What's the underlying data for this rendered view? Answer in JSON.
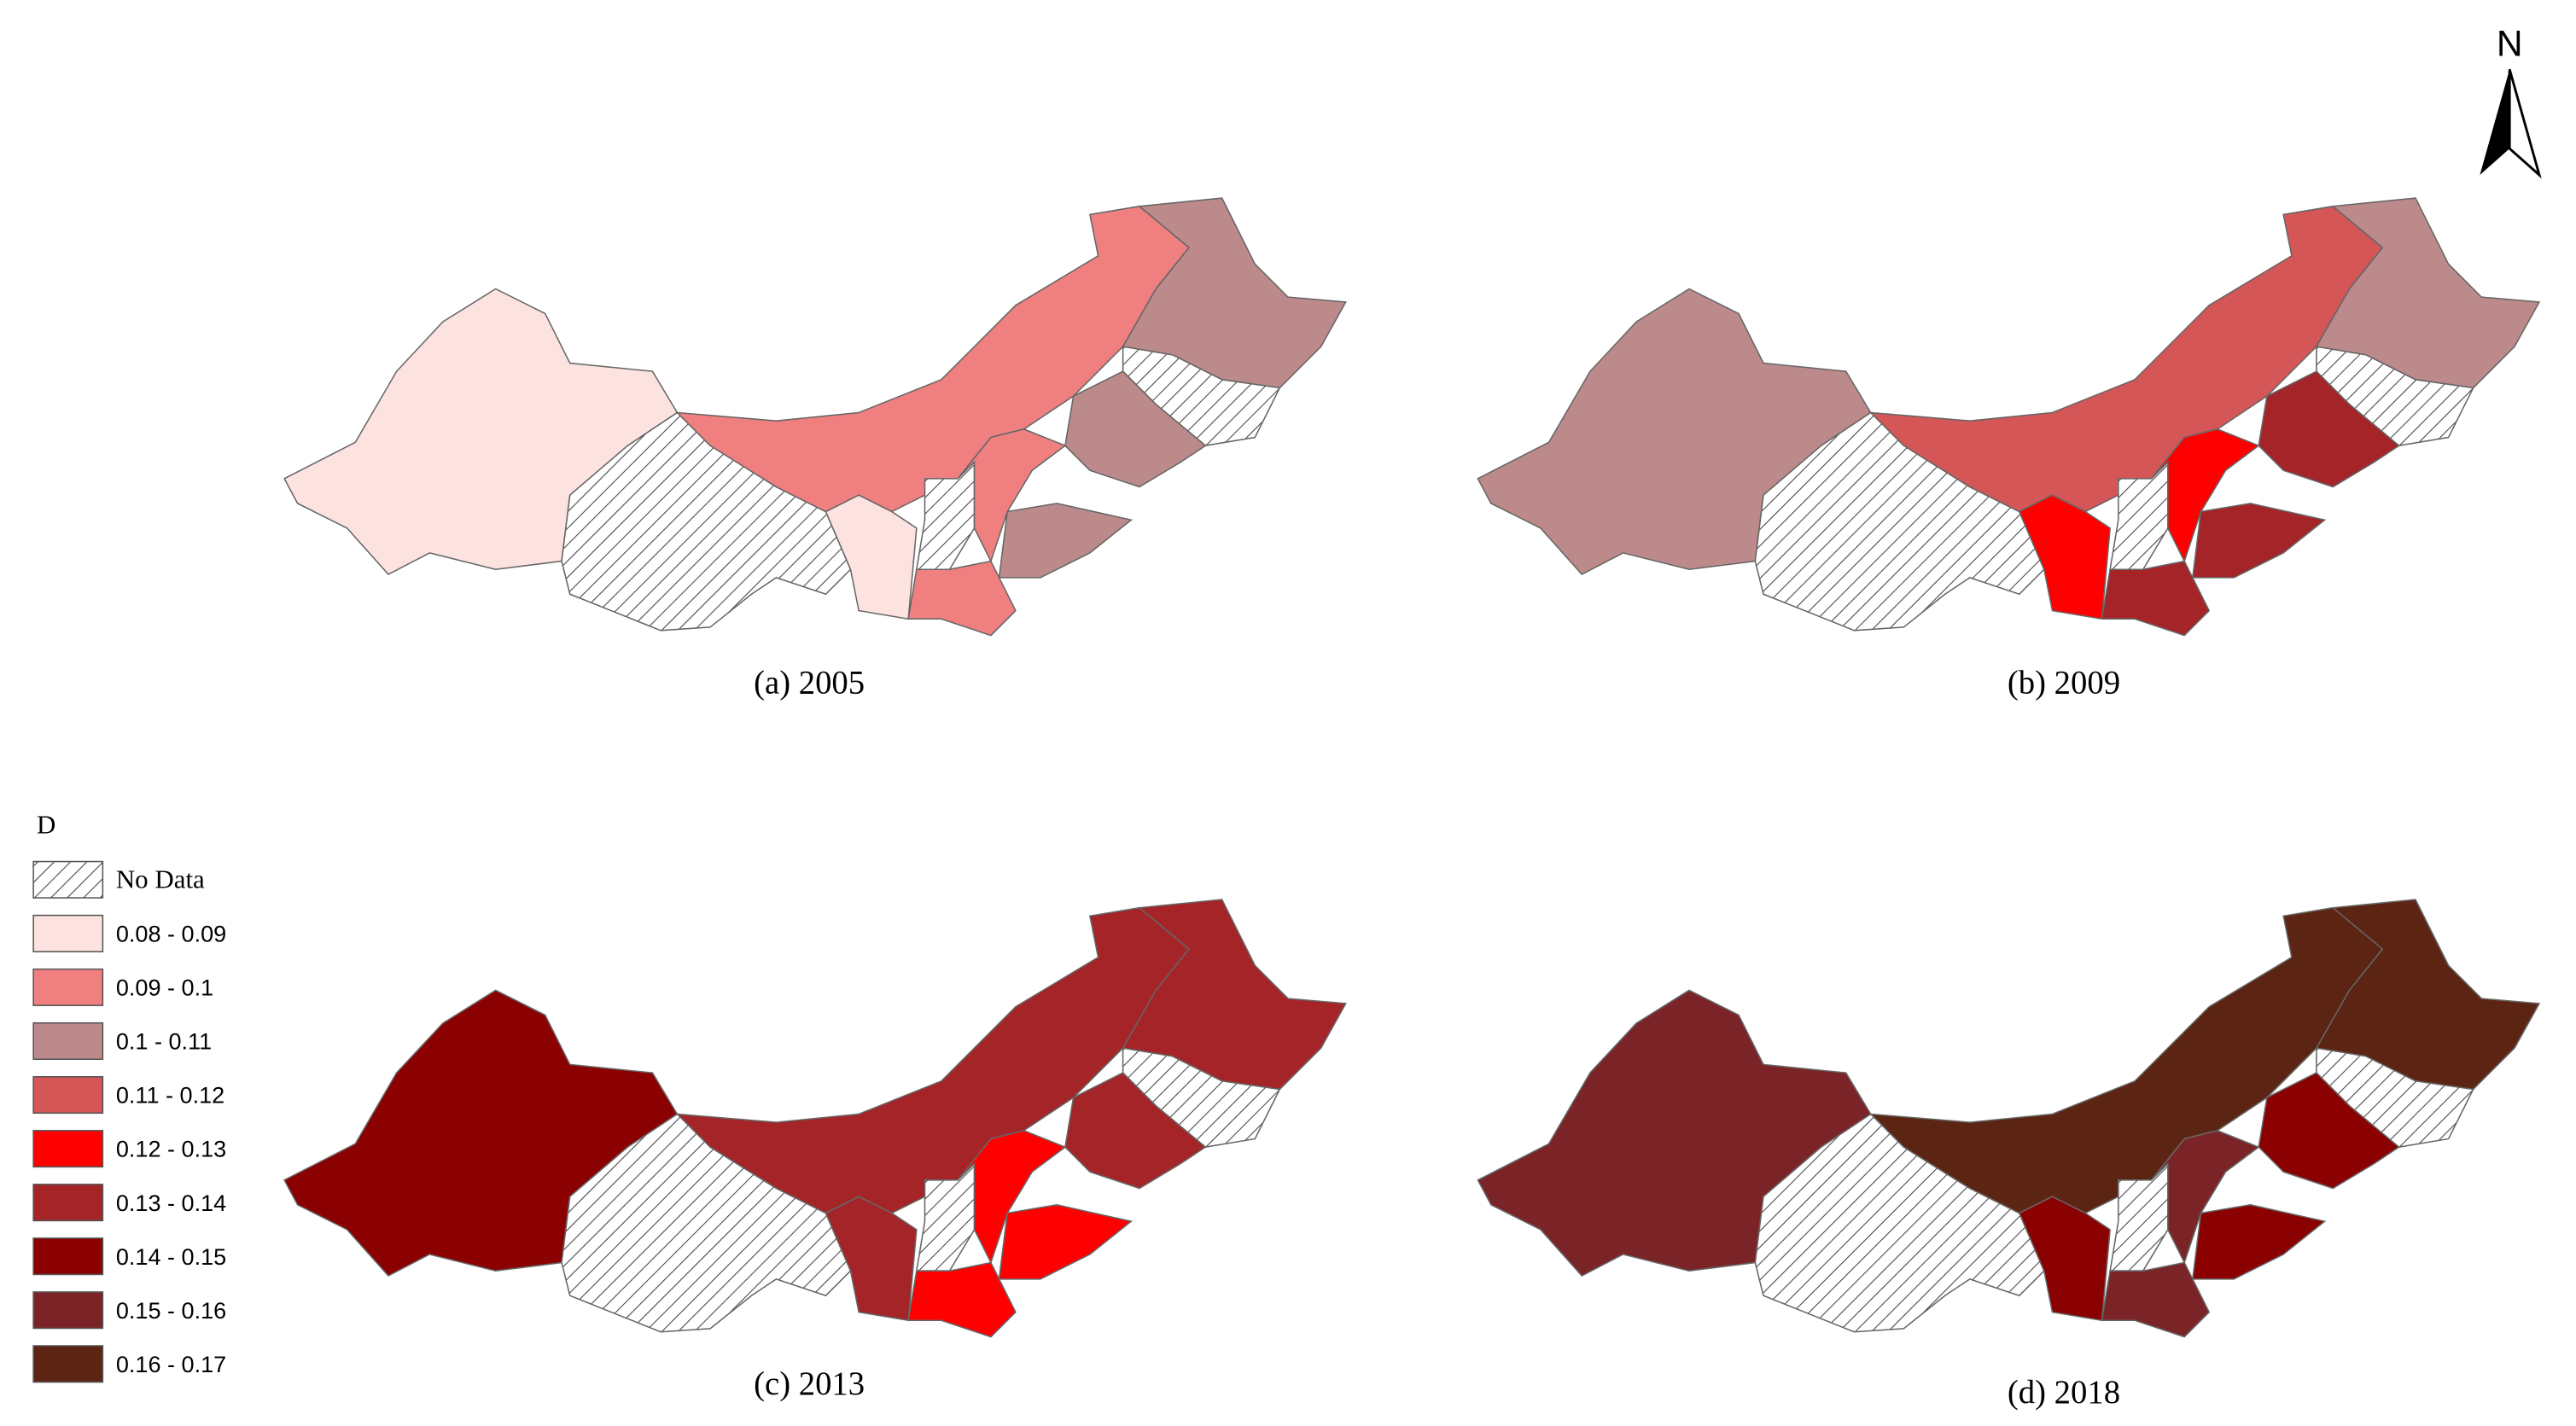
{
  "north": "N",
  "legend": {
    "title": "D",
    "items": [
      {
        "label": "No Data",
        "color": "#ffffff",
        "hatched": true
      },
      {
        "label": "0.08 - 0.09",
        "color": "#fde3df"
      },
      {
        "label": "0.09 - 0.1",
        "color": "#f08080"
      },
      {
        "label": "0.1 - 0.11",
        "color": "#bc8a8b"
      },
      {
        "label": "0.11 - 0.12",
        "color": "#d45656"
      },
      {
        "label": "0.12 - 0.13",
        "color": "#ff0000"
      },
      {
        "label": "0.13 - 0.14",
        "color": "#a42428"
      },
      {
        "label": "0.14 - 0.15",
        "color": "#8b0000"
      },
      {
        "label": "0.15 - 0.16",
        "color": "#7b2427"
      },
      {
        "label": "0.16 - 0.17",
        "color": "#5c2412"
      }
    ]
  },
  "panels": [
    {
      "caption": "(a) 2005",
      "regions": [
        "0.08 - 0.09",
        "No Data",
        "0.09 - 0.1",
        "0.1 - 0.11",
        "No Data",
        "0.1 - 0.11",
        "0.08 - 0.09",
        "No Data",
        "0.09 - 0.1",
        "0.1 - 0.11",
        "0.09 - 0.1"
      ]
    },
    {
      "caption": "(b) 2009",
      "regions": [
        "0.1 - 0.11",
        "No Data",
        "0.11 - 0.12",
        "0.1 - 0.11",
        "No Data",
        "0.13 - 0.14",
        "0.12 - 0.13",
        "No Data",
        "0.12 - 0.13",
        "0.13 - 0.14",
        "0.13 - 0.14"
      ]
    },
    {
      "caption": "(c) 2013",
      "regions": [
        "0.14 - 0.15",
        "No Data",
        "0.13 - 0.14",
        "0.13 - 0.14",
        "No Data",
        "0.13 - 0.14",
        "0.13 - 0.14",
        "No Data",
        "0.12 - 0.13",
        "0.12 - 0.13",
        "0.12 - 0.13"
      ]
    },
    {
      "caption": "(d) 2018",
      "regions": [
        "0.15 - 0.16",
        "No Data",
        "0.16 - 0.17",
        "0.16 - 0.17",
        "No Data",
        "0.14 - 0.15",
        "0.14 - 0.15",
        "No Data",
        "0.15 - 0.16",
        "0.14 - 0.15",
        "0.15 - 0.16"
      ]
    }
  ]
}
